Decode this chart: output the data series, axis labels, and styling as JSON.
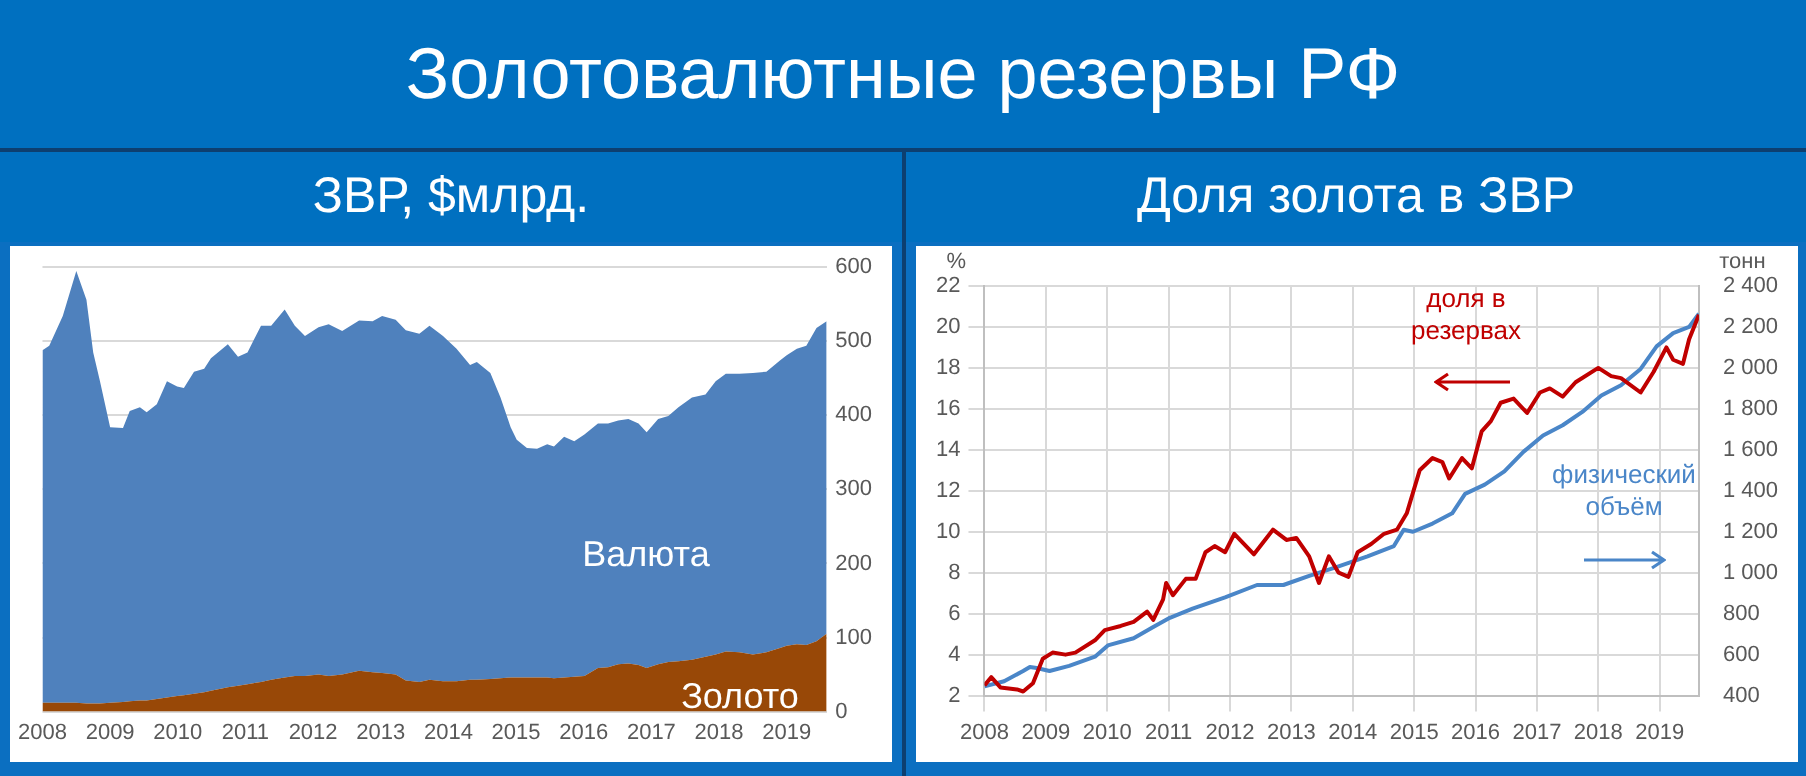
{
  "chart_data": [
    {
      "type": "area",
      "title": "Золотовалютные резервы РФ",
      "subtitle": "ЗВР, $млрд.",
      "stacked": true,
      "grid": "y",
      "x": [
        2008.0,
        2008.1,
        2008.3,
        2008.5,
        2008.65,
        2008.75,
        2008.85,
        2009.0,
        2009.19,
        2009.29,
        2009.44,
        2009.54,
        2009.69,
        2009.84,
        2009.99,
        2010.09,
        2010.24,
        2010.39,
        2010.49,
        2010.74,
        2010.89,
        2011.03,
        2011.23,
        2011.38,
        2011.58,
        2011.73,
        2011.88,
        2012.08,
        2012.23,
        2012.43,
        2012.68,
        2012.88,
        2013.02,
        2013.22,
        2013.37,
        2013.57,
        2013.72,
        2013.92,
        2014.12,
        2014.32,
        2014.42,
        2014.62,
        2014.77,
        2014.92,
        2015.01,
        2015.16,
        2015.31,
        2015.46,
        2015.56,
        2015.71,
        2015.86,
        2016.01,
        2016.21,
        2016.36,
        2016.51,
        2016.66,
        2016.81,
        2016.93,
        2017.1,
        2017.25,
        2017.4,
        2017.6,
        2017.8,
        2017.95,
        2018.1,
        2018.3,
        2018.5,
        2018.7,
        2018.9,
        2019.0,
        2019.15,
        2019.29,
        2019.44,
        2019.59
      ],
      "series": [
        {
          "name": "Золото",
          "color": "#984807",
          "values": [
            12,
            12,
            12,
            12,
            11,
            11,
            11,
            12,
            13,
            14,
            15,
            15,
            17,
            19,
            21,
            22,
            24,
            26,
            28,
            33,
            35,
            37,
            40,
            43,
            46,
            48,
            48,
            50,
            48,
            50,
            55,
            53,
            52,
            50,
            42,
            40,
            43,
            41,
            41,
            43,
            43,
            44,
            45,
            46,
            46,
            46,
            46,
            46,
            45,
            46,
            47,
            48,
            59,
            60,
            64,
            65,
            63,
            59,
            64,
            67,
            68,
            70,
            74,
            77,
            81,
            80,
            77,
            80,
            86,
            89,
            91,
            90,
            95,
            105
          ]
        },
        {
          "name": "Валюта",
          "color": "#4f81bd",
          "values": [
            476,
            482,
            522,
            583,
            545,
            474,
            435,
            372,
            370,
            392,
            396,
            389,
            398,
            427,
            418,
            415,
            435,
            437,
            449,
            463,
            444,
            448,
            481,
            478,
            497,
            473,
            459,
            469,
            475,
            464,
            473,
            474,
            482,
            479,
            473,
            470,
            478,
            466,
            449,
            425,
            429,
            413,
            379,
            338,
            321,
            310,
            309,
            315,
            313,
            325,
            318,
            326,
            330,
            329,
            329,
            330,
            326,
            318,
            331,
            332,
            343,
            354,
            354,
            369,
            375,
            376,
            380,
            379,
            388,
            392,
            399,
            404,
            423,
            422
          ]
        }
      ],
      "xlim": [
        2008,
        2019.6
      ],
      "xticks": [
        2008,
        2009,
        2010,
        2011,
        2012,
        2013,
        2014,
        2015,
        2016,
        2017,
        2018,
        2019
      ],
      "ylim": [
        0,
        600
      ],
      "yticks": [
        0,
        100,
        200,
        300,
        400,
        500,
        600
      ]
    },
    {
      "type": "line",
      "title": "Доля золота в ЗВР",
      "ylabel": "%",
      "y2label": "тонн",
      "grid": true,
      "series": [
        {
          "name": "доля в резервах",
          "color": "#c00000",
          "x": [
            2008.0,
            2008.11,
            2008.26,
            2008.53,
            2008.63,
            2008.79,
            2008.95,
            2009.11,
            2009.32,
            2009.48,
            2009.8,
            2009.96,
            2010.22,
            2010.43,
            2010.65,
            2010.75,
            2010.91,
            2010.96,
            2011.07,
            2011.28,
            2011.44,
            2011.6,
            2011.75,
            2011.92,
            2012.07,
            2012.39,
            2012.7,
            2012.92,
            2013.08,
            2013.29,
            2013.45,
            2013.61,
            2013.77,
            2013.93,
            2014.08,
            2014.3,
            2014.51,
            2014.72,
            2014.88,
            2015.09,
            2015.3,
            2015.46,
            2015.57,
            2015.78,
            2015.94,
            2016.1,
            2016.25,
            2016.41,
            2016.62,
            2016.84,
            2017.05,
            2017.21,
            2017.42,
            2017.63,
            2018.0,
            2018.21,
            2018.37,
            2018.69,
            2018.9,
            2019.11,
            2019.22,
            2019.38,
            2019.48,
            2019.64
          ],
          "values": [
            2.5,
            2.9,
            2.4,
            2.3,
            2.2,
            2.6,
            3.8,
            4.1,
            4.0,
            4.1,
            4.7,
            5.2,
            5.4,
            5.6,
            6.1,
            5.7,
            6.7,
            7.5,
            6.9,
            7.7,
            7.7,
            9.0,
            9.3,
            9.0,
            9.9,
            8.9,
            10.1,
            9.6,
            9.7,
            8.8,
            7.5,
            8.8,
            8.0,
            7.8,
            9.0,
            9.4,
            9.9,
            10.1,
            10.9,
            13.0,
            13.6,
            13.4,
            12.6,
            13.6,
            13.1,
            14.9,
            15.4,
            16.3,
            16.5,
            15.8,
            16.8,
            17.0,
            16.6,
            17.3,
            18.0,
            17.6,
            17.5,
            16.8,
            17.8,
            19.0,
            18.4,
            18.2,
            19.4,
            20.6
          ]
        },
        {
          "name": "физический объём",
          "color": "#4a86c8",
          "axis": "y2",
          "x": [
            2008.0,
            2008.32,
            2008.63,
            2008.74,
            2008.85,
            2009.06,
            2009.38,
            2009.8,
            2010.01,
            2010.43,
            2010.75,
            2011.02,
            2011.39,
            2011.92,
            2012.44,
            2012.87,
            2013.29,
            2013.71,
            2014.24,
            2014.67,
            2014.83,
            2014.98,
            2015.3,
            2015.62,
            2015.83,
            2016.15,
            2016.47,
            2016.78,
            2017.1,
            2017.42,
            2017.74,
            2018.05,
            2018.37,
            2018.69,
            2018.95,
            2019.22,
            2019.48,
            2019.64
          ],
          "values": [
            445,
            470,
            520,
            540,
            535,
            520,
            545,
            590,
            645,
            680,
            735,
            780,
            825,
            880,
            940,
            940,
            985,
            1025,
            1080,
            1130,
            1210,
            1200,
            1240,
            1290,
            1385,
            1430,
            1495,
            1590,
            1670,
            1720,
            1785,
            1865,
            1915,
            1995,
            2105,
            2170,
            2200,
            2265
          ]
        }
      ],
      "xlim": [
        2008,
        2019.64
      ],
      "xticks": [
        2008,
        2009,
        2010,
        2011,
        2012,
        2013,
        2014,
        2015,
        2016,
        2017,
        2018,
        2019
      ],
      "ylim": [
        2,
        22
      ],
      "yticks": [
        2,
        4,
        6,
        8,
        10,
        12,
        14,
        16,
        18,
        20,
        22
      ],
      "y2lim": [
        400,
        2400
      ],
      "y2ticks": [
        {
          "value": 400,
          "label": "400"
        },
        {
          "value": 600,
          "label": "600"
        },
        {
          "value": 800,
          "label": "800"
        },
        {
          "value": 1000,
          "label": "1 000"
        },
        {
          "value": 1200,
          "label": "1 200"
        },
        {
          "value": 1400,
          "label": "1 400"
        },
        {
          "value": 1600,
          "label": "1 600"
        },
        {
          "value": 1800,
          "label": "1 800"
        },
        {
          "value": 2000,
          "label": "2 000"
        },
        {
          "value": 2200,
          "label": "2 200"
        },
        {
          "value": 2400,
          "label": "2 400"
        }
      ]
    }
  ]
}
